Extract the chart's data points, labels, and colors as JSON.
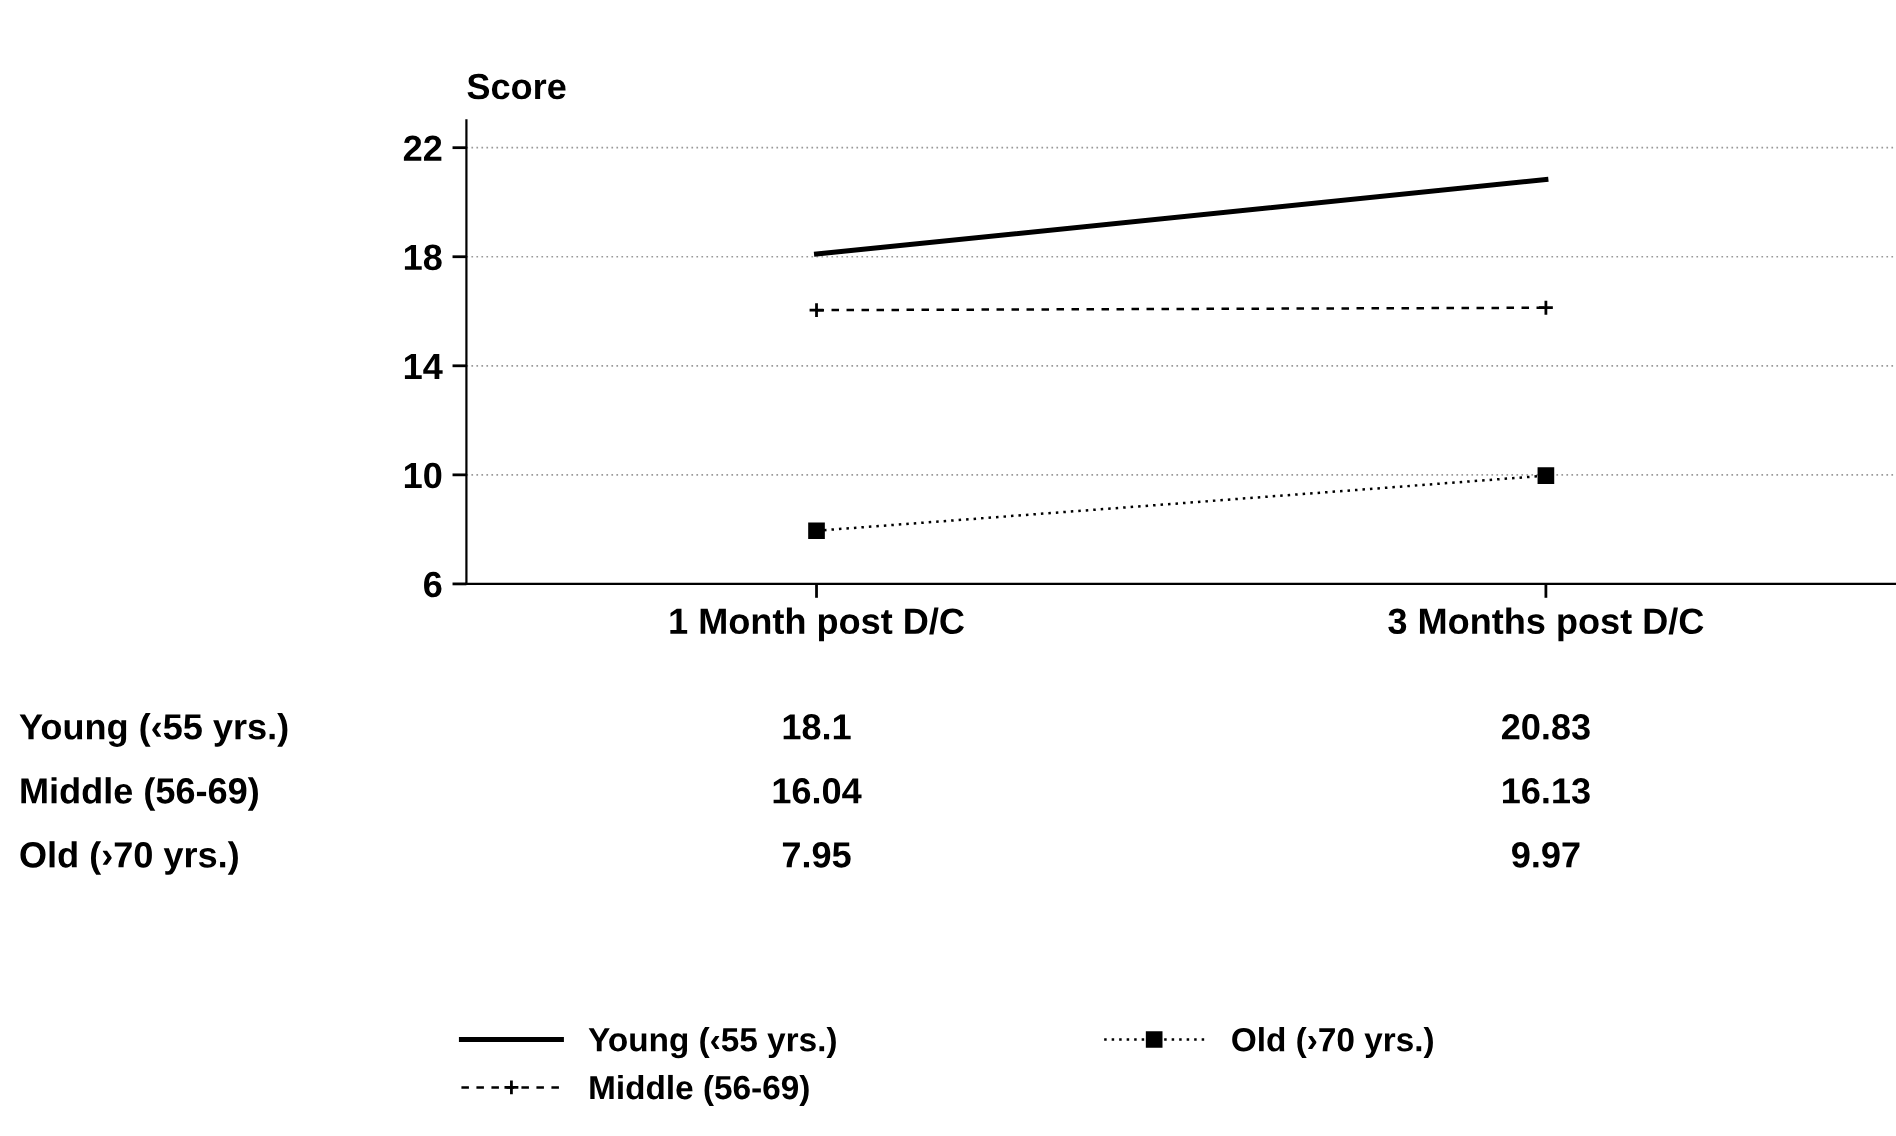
{
  "chart_data": {
    "type": "line",
    "ylabel": "Score",
    "categories": [
      "1 Month post D/C",
      "3 Months post D/C"
    ],
    "series": [
      {
        "name": "Young (‹55 yrs.)",
        "color": "#000000",
        "values": [
          18.1,
          20.83
        ],
        "marker": "none",
        "line_style": "solid"
      },
      {
        "name": "Middle (56-69)",
        "color": "#000000",
        "values": [
          16.04,
          16.13
        ],
        "marker": "cross",
        "line_style": "dashed"
      },
      {
        "name": "Old (›70 yrs.)",
        "color": "#000000",
        "values": [
          7.95,
          9.97
        ],
        "marker": "square",
        "line_style": "dotted"
      }
    ],
    "ylim": [
      6,
      23
    ],
    "yticks": [
      6,
      10,
      14,
      18,
      22
    ],
    "grid": "y",
    "legend": "bottom",
    "data_labels": true
  }
}
